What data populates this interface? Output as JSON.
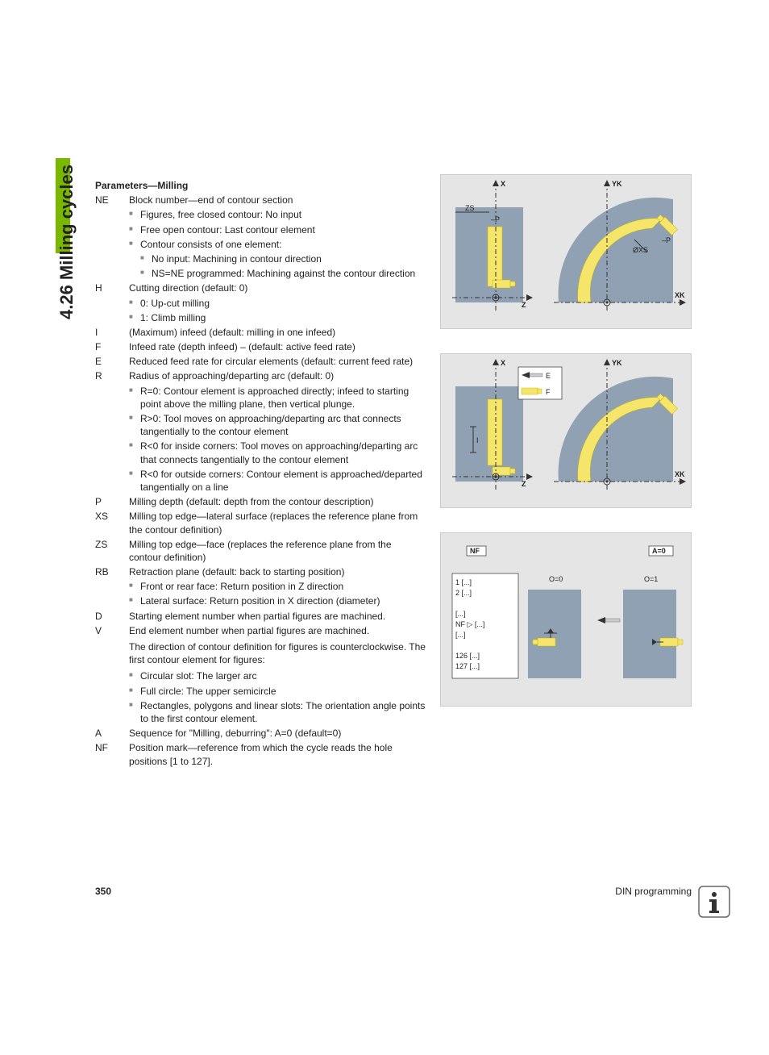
{
  "sideTab": {
    "label": "4.26 Milling cycles"
  },
  "title": "Parameters—Milling",
  "params": [
    {
      "key": "NE",
      "desc": "Block number—end of contour section",
      "bullets": [
        "Figures, free closed contour: No input",
        "Free open contour: Last contour element",
        "Contour consists of one element:"
      ],
      "subBullets": [
        "No input: Machining in contour direction",
        "NS=NE programmed: Machining against the contour direction"
      ]
    },
    {
      "key": "H",
      "desc": "Cutting direction (default: 0)",
      "bullets": [
        "0: Up-cut milling",
        "1: Climb milling"
      ]
    },
    {
      "key": "I",
      "desc": "(Maximum) infeed (default: milling in one infeed)"
    },
    {
      "key": "F",
      "desc": "Infeed rate (depth infeed) – (default: active feed rate)"
    },
    {
      "key": "E",
      "desc": "Reduced feed rate for circular elements (default: current feed rate)"
    },
    {
      "key": "R",
      "desc": "Radius of approaching/departing arc (default: 0)",
      "bullets": [
        "R=0: Contour element is approached directly; infeed to starting point above the milling plane, then vertical plunge.",
        "R>0: Tool moves on approaching/departing arc that connects tangentially to the contour element",
        "R<0 for inside corners: Tool moves on approaching/departing arc that connects tangentially to the contour element",
        "R<0 for outside corners: Contour element is approached/departed tangentially on a line"
      ]
    },
    {
      "key": "P",
      "desc": "Milling depth (default: depth from the contour description)"
    },
    {
      "key": "XS",
      "desc": "Milling top edge—lateral surface (replaces the reference plane from the contour definition)"
    },
    {
      "key": "ZS",
      "desc": "Milling top edge—face (replaces the reference plane from the contour definition)"
    },
    {
      "key": "RB",
      "desc": "Retraction plane (default: back to starting position)",
      "bullets": [
        "Front or rear face: Return position in Z direction",
        "Lateral surface: Return position in X direction (diameter)"
      ]
    },
    {
      "key": "D",
      "desc": "Starting element number when partial figures are machined."
    },
    {
      "key": "V",
      "desc": "End element number when partial figures are machined.",
      "note": "The direction of contour definition for figures is counterclockwise. The first contour element for figures:",
      "bullets": [
        "Circular slot: The larger arc",
        "Full circle: The upper semicircle",
        "Rectangles, polygons and linear slots: The orientation angle points to the first contour element."
      ]
    },
    {
      "key": "A",
      "desc": "Sequence for \"Milling, deburring\": A=0 (default=0)"
    },
    {
      "key": "NF",
      "desc": "Position mark—reference from which the cycle reads the hole positions [1 to 127]."
    }
  ],
  "fig1": {
    "xLabel": "X",
    "zLabel": "Z",
    "ykLabel": "YK",
    "xkLabel": "XK",
    "zsLabel": "ZS",
    "pLabel": "–P",
    "xsLabel": "ØXS"
  },
  "fig2": {
    "xLabel": "X",
    "zLabel": "Z",
    "ykLabel": "YK",
    "xkLabel": "XK",
    "iLabel": "I",
    "fLabel": "F",
    "eLabel": "E"
  },
  "fig3": {
    "nfLabel": "NF",
    "a0Label": "A=0",
    "o0": "O=0",
    "o1": "O=1",
    "codeLines": [
      "1   [...]",
      "2   [...]",
      "",
      "    [...]",
      "NF ▷ [...]",
      "    [...]",
      "",
      "126 [...]",
      "127 [...]"
    ]
  },
  "footer": {
    "page": "350",
    "chapter": "DIN programming"
  },
  "colors": {
    "green": "#7ab800",
    "panel": "#8fa1b3",
    "slot": "#f5e66b",
    "figBg": "#e5e5e5"
  }
}
